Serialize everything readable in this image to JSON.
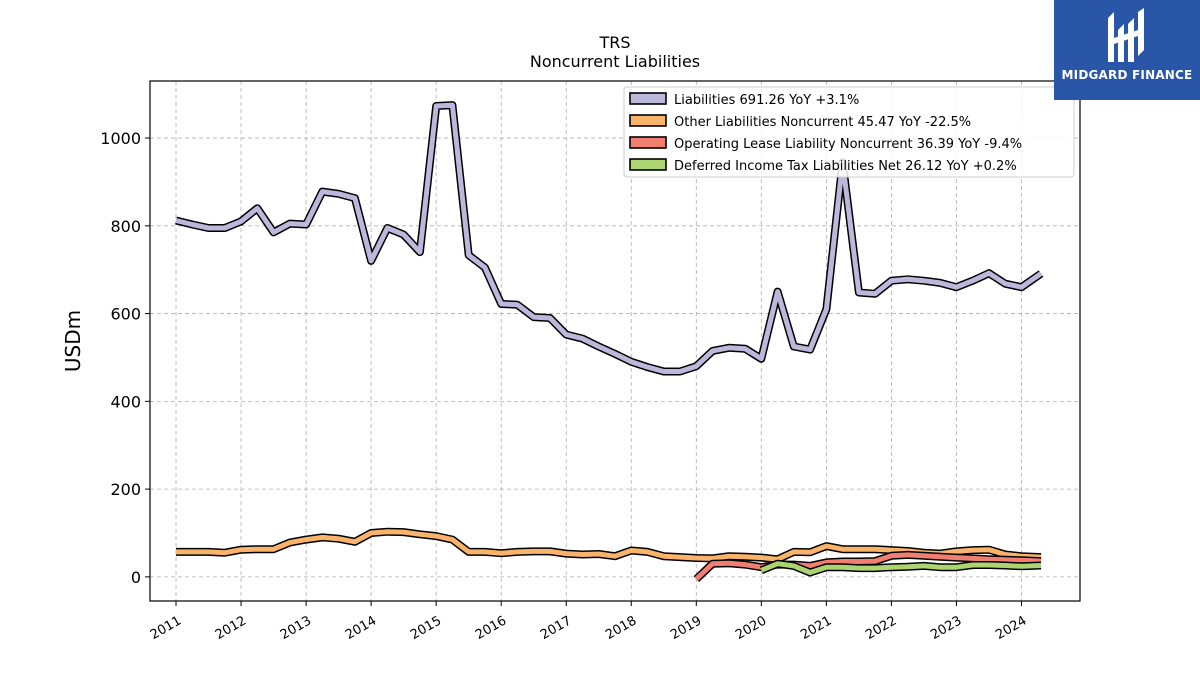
{
  "chart_data": {
    "type": "line",
    "title": "TRS",
    "subtitle": "Noncurrent  Liabilities",
    "ylabel": "USDm",
    "xlabel": "",
    "ylim": [
      -55,
      1130
    ],
    "yticks": [
      0,
      200,
      400,
      600,
      800,
      1000
    ],
    "xlim": [
      2010.6,
      2024.9
    ],
    "xticks": [
      "2011",
      "2012",
      "2013",
      "2014",
      "2015",
      "2016",
      "2017",
      "2018",
      "2019",
      "2020",
      "2021",
      "2022",
      "2023",
      "2024"
    ],
    "grid": true,
    "legend_position": "top-right",
    "series": [
      {
        "name": "Liabilities",
        "legend": "Liabilities  691.26 YoY +3.1%",
        "color": "#bcb8dc",
        "points": [
          [
            2011.0,
            812
          ],
          [
            2011.25,
            803
          ],
          [
            2011.5,
            795
          ],
          [
            2011.75,
            795
          ],
          [
            2012.0,
            810
          ],
          [
            2012.25,
            840
          ],
          [
            2012.5,
            785
          ],
          [
            2012.75,
            805
          ],
          [
            2013.0,
            803
          ],
          [
            2013.25,
            878
          ],
          [
            2013.5,
            873
          ],
          [
            2013.75,
            863
          ],
          [
            2014.0,
            720
          ],
          [
            2014.25,
            795
          ],
          [
            2014.5,
            780
          ],
          [
            2014.75,
            740
          ],
          [
            2015.0,
            1073
          ],
          [
            2015.25,
            1075
          ],
          [
            2015.5,
            733
          ],
          [
            2015.75,
            705
          ],
          [
            2016.0,
            622
          ],
          [
            2016.25,
            620
          ],
          [
            2016.5,
            592
          ],
          [
            2016.75,
            590
          ],
          [
            2017.0,
            552
          ],
          [
            2017.25,
            543
          ],
          [
            2017.5,
            525
          ],
          [
            2017.75,
            508
          ],
          [
            2018.0,
            490
          ],
          [
            2018.25,
            478
          ],
          [
            2018.5,
            468
          ],
          [
            2018.75,
            468
          ],
          [
            2019.0,
            480
          ],
          [
            2019.25,
            515
          ],
          [
            2019.5,
            522
          ],
          [
            2019.75,
            520
          ],
          [
            2020.0,
            497
          ],
          [
            2020.25,
            650
          ],
          [
            2020.5,
            525
          ],
          [
            2020.75,
            518
          ],
          [
            2021.0,
            610
          ],
          [
            2021.25,
            945
          ],
          [
            2021.5,
            648
          ],
          [
            2021.75,
            645
          ],
          [
            2022.0,
            675
          ],
          [
            2022.25,
            678
          ],
          [
            2022.5,
            675
          ],
          [
            2022.75,
            670
          ],
          [
            2023.0,
            660
          ],
          [
            2023.25,
            675
          ],
          [
            2023.5,
            692
          ],
          [
            2023.75,
            668
          ],
          [
            2024.0,
            660
          ],
          [
            2024.3,
            691
          ]
        ]
      },
      {
        "name": "Other Liabilities Noncurrent",
        "legend": "Other Liabilities Noncurrent  45.47 YoY -22.5%",
        "color": "#f9b36a",
        "points": [
          [
            2011.0,
            57
          ],
          [
            2011.25,
            57
          ],
          [
            2011.5,
            57
          ],
          [
            2011.75,
            55
          ],
          [
            2012.0,
            62
          ],
          [
            2012.25,
            63
          ],
          [
            2012.5,
            63
          ],
          [
            2012.75,
            78
          ],
          [
            2013.0,
            85
          ],
          [
            2013.25,
            90
          ],
          [
            2013.5,
            87
          ],
          [
            2013.75,
            80
          ],
          [
            2014.0,
            100
          ],
          [
            2014.25,
            103
          ],
          [
            2014.5,
            102
          ],
          [
            2014.75,
            97
          ],
          [
            2015.0,
            93
          ],
          [
            2015.25,
            85
          ],
          [
            2015.5,
            57
          ],
          [
            2015.75,
            57
          ],
          [
            2016.0,
            54
          ],
          [
            2016.25,
            57
          ],
          [
            2016.5,
            58
          ],
          [
            2016.75,
            58
          ],
          [
            2017.0,
            53
          ],
          [
            2017.25,
            51
          ],
          [
            2017.5,
            52
          ],
          [
            2017.75,
            47
          ],
          [
            2018.0,
            60
          ],
          [
            2018.25,
            57
          ],
          [
            2018.5,
            47
          ],
          [
            2018.75,
            45
          ],
          [
            2019.0,
            43
          ],
          [
            2019.25,
            42
          ],
          [
            2019.5,
            47
          ],
          [
            2019.75,
            46
          ],
          [
            2020.0,
            44
          ],
          [
            2020.25,
            40
          ],
          [
            2020.5,
            57
          ],
          [
            2020.75,
            56
          ],
          [
            2021.0,
            70
          ],
          [
            2021.25,
            63
          ],
          [
            2021.5,
            63
          ],
          [
            2021.75,
            63
          ],
          [
            2022.0,
            61
          ],
          [
            2022.25,
            59
          ],
          [
            2022.5,
            55
          ],
          [
            2022.75,
            53
          ],
          [
            2023.0,
            58
          ],
          [
            2023.25,
            61
          ],
          [
            2023.5,
            62
          ],
          [
            2023.75,
            51
          ],
          [
            2024.0,
            47
          ],
          [
            2024.3,
            45
          ]
        ]
      },
      {
        "name": "Operating Lease Liability Noncurrent",
        "legend": "Operating Lease Liability Noncurrent  36.39 YoY -9.4%",
        "color": "#f07f72",
        "points": [
          [
            2019.0,
            -5
          ],
          [
            2019.25,
            30
          ],
          [
            2019.5,
            31
          ],
          [
            2019.75,
            28
          ],
          [
            2020.0,
            22
          ],
          [
            2020.25,
            28
          ],
          [
            2020.5,
            28
          ],
          [
            2020.75,
            25
          ],
          [
            2021.0,
            33
          ],
          [
            2021.25,
            35
          ],
          [
            2021.5,
            35
          ],
          [
            2021.75,
            36
          ],
          [
            2022.0,
            48
          ],
          [
            2022.25,
            50
          ],
          [
            2022.5,
            48
          ],
          [
            2022.75,
            46
          ],
          [
            2023.0,
            44
          ],
          [
            2023.25,
            42
          ],
          [
            2023.5,
            40
          ],
          [
            2023.75,
            39
          ],
          [
            2024.0,
            38
          ],
          [
            2024.3,
            36
          ]
        ]
      },
      {
        "name": "Deferred Income Tax Liabilities Net",
        "legend": "Deferred Income Tax Liabilities Net  26.12 YoY +0.2%",
        "color": "#acd470",
        "points": [
          [
            2020.0,
            15
          ],
          [
            2020.25,
            30
          ],
          [
            2020.5,
            25
          ],
          [
            2020.75,
            10
          ],
          [
            2021.0,
            22
          ],
          [
            2021.25,
            22
          ],
          [
            2021.5,
            20
          ],
          [
            2021.75,
            20
          ],
          [
            2022.0,
            22
          ],
          [
            2022.25,
            23
          ],
          [
            2022.5,
            25
          ],
          [
            2022.75,
            22
          ],
          [
            2023.0,
            22
          ],
          [
            2023.25,
            27
          ],
          [
            2023.5,
            27
          ],
          [
            2023.75,
            26
          ],
          [
            2024.0,
            24
          ],
          [
            2024.3,
            26
          ]
        ]
      }
    ]
  },
  "brand": {
    "name": "MIDGARD FINANCE",
    "background": "#2a56a8",
    "icon": "midgard-logo-icon"
  }
}
